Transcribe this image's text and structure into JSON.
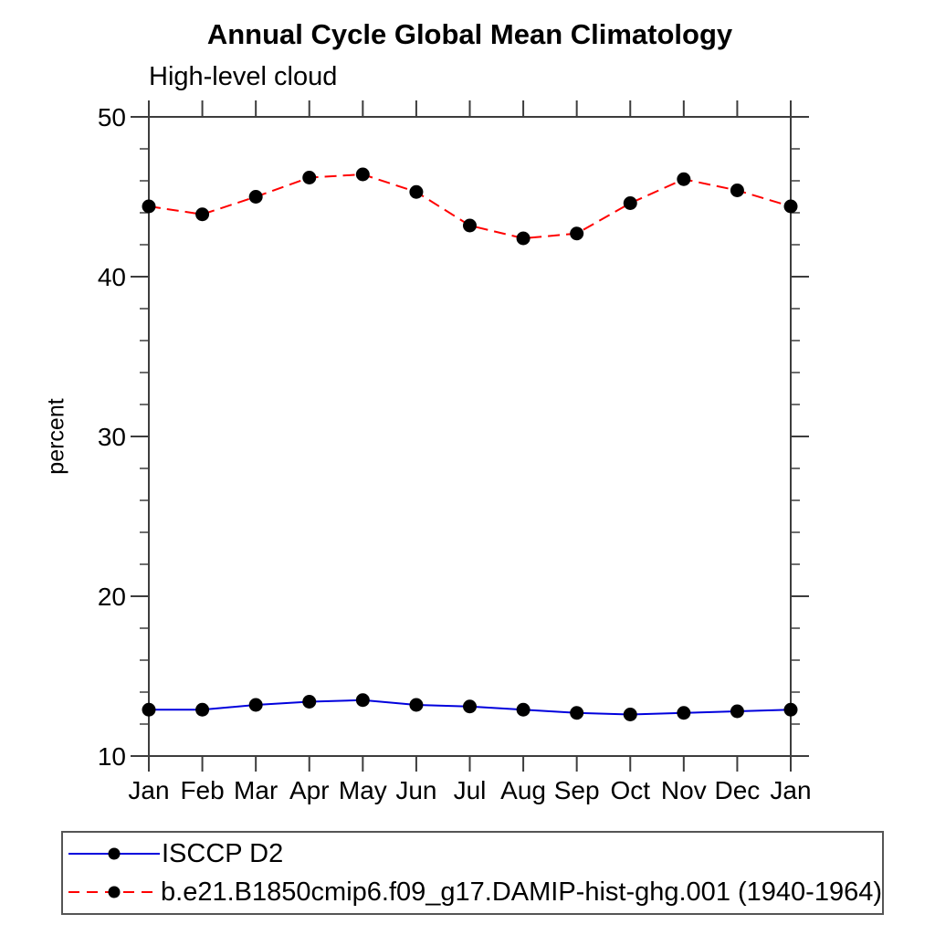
{
  "chart_data": {
    "type": "line",
    "title": "Annual Cycle Global Mean Climatology",
    "subtitle": "High-level cloud",
    "ylabel": "percent",
    "x_categories": [
      "Jan",
      "Feb",
      "Mar",
      "Apr",
      "May",
      "Jun",
      "Jul",
      "Aug",
      "Sep",
      "Oct",
      "Nov",
      "Dec",
      "Jan"
    ],
    "ylim": [
      10,
      50
    ],
    "ytick_major": [
      10,
      20,
      30,
      40,
      50
    ],
    "ytick_minor_step": 2,
    "grid": false,
    "legend_position": "bottom-left",
    "axis_color": "#3d3d3d",
    "marker_color": "#000000",
    "series": [
      {
        "name": "ISCCP D2",
        "color": "#0000dd",
        "line_style": "solid",
        "values": [
          12.9,
          12.9,
          13.2,
          13.4,
          13.5,
          13.2,
          13.1,
          12.9,
          12.7,
          12.6,
          12.7,
          12.8,
          12.9
        ]
      },
      {
        "name": "b.e21.B1850cmip6.f09_g17.DAMIP-hist-ghg.001 (1940-1964)",
        "color": "#ff0000",
        "line_style": "dashed",
        "values": [
          44.4,
          43.9,
          45.0,
          46.2,
          46.4,
          45.3,
          43.2,
          42.4,
          42.7,
          44.6,
          46.1,
          45.4,
          44.4
        ]
      }
    ]
  }
}
